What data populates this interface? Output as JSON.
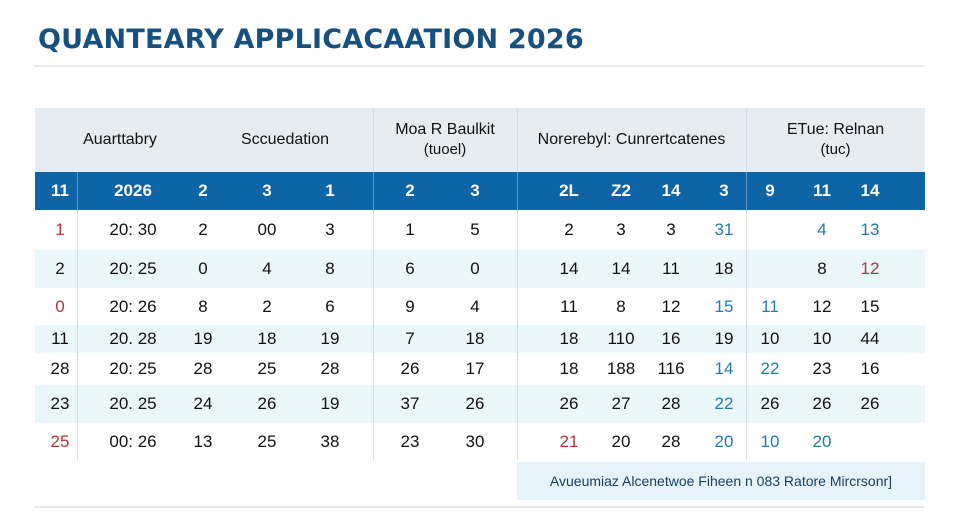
{
  "page": {
    "title": "QUANTEARY APPLICACAATION 2026"
  },
  "table": {
    "group_headers": [
      {
        "label": "Auarttabry",
        "sub": ""
      },
      {
        "label": "Sccuedation",
        "sub": ""
      },
      {
        "label": "Moa R Baulkit",
        "sub": "(tuoel)"
      },
      {
        "label": "Norerebyl: Cunrertcatenes",
        "sub": ""
      },
      {
        "label": "ETue: Relnan",
        "sub": "(tuc)"
      }
    ],
    "band": [
      "11",
      "2026",
      "2",
      "3",
      "1",
      "2",
      "3",
      "2L",
      "Z2",
      "14",
      "3",
      "9",
      "11",
      "14"
    ],
    "rows": [
      {
        "style": "plain",
        "cells": [
          {
            "v": "1",
            "c": "red"
          },
          {
            "v": "20: 30"
          },
          {
            "v": "2"
          },
          {
            "v": "00"
          },
          {
            "v": "3"
          },
          {
            "v": "1"
          },
          {
            "v": "5"
          },
          {
            "v": "2"
          },
          {
            "v": "3"
          },
          {
            "v": "3"
          },
          {
            "v": "31",
            "c": "blue"
          },
          {
            "v": ""
          },
          {
            "v": "4",
            "c": "blue"
          },
          {
            "v": "13",
            "c": "blue"
          }
        ]
      },
      {
        "style": "alt",
        "cells": [
          {
            "v": "2"
          },
          {
            "v": "20: 25"
          },
          {
            "v": "0"
          },
          {
            "v": "4"
          },
          {
            "v": "8"
          },
          {
            "v": "6"
          },
          {
            "v": "0"
          },
          {
            "v": "14"
          },
          {
            "v": "14"
          },
          {
            "v": "11"
          },
          {
            "v": "18"
          },
          {
            "v": ""
          },
          {
            "v": "8"
          },
          {
            "v": "12",
            "c": "red"
          }
        ]
      },
      {
        "style": "plain",
        "cells": [
          {
            "v": "0",
            "c": "red"
          },
          {
            "v": "20: 26"
          },
          {
            "v": "8"
          },
          {
            "v": "2"
          },
          {
            "v": "6"
          },
          {
            "v": "9"
          },
          {
            "v": "4"
          },
          {
            "v": "11"
          },
          {
            "v": "8"
          },
          {
            "v": "12"
          },
          {
            "v": "15",
            "c": "blue"
          },
          {
            "v": "11",
            "c": "blue"
          },
          {
            "v": "12"
          },
          {
            "v": "15"
          }
        ]
      },
      {
        "style": "alt",
        "cells": [
          {
            "v": "11"
          },
          {
            "v": "20. 28"
          },
          {
            "v": "19"
          },
          {
            "v": "18"
          },
          {
            "v": "19"
          },
          {
            "v": "7"
          },
          {
            "v": "18"
          },
          {
            "v": "18"
          },
          {
            "v": "110"
          },
          {
            "v": "16"
          },
          {
            "v": "19"
          },
          {
            "v": "10"
          },
          {
            "v": "10"
          },
          {
            "v": "44"
          }
        ]
      },
      {
        "style": "plain",
        "cells": [
          {
            "v": "28"
          },
          {
            "v": "20: 25"
          },
          {
            "v": "28"
          },
          {
            "v": "25"
          },
          {
            "v": "28"
          },
          {
            "v": "26"
          },
          {
            "v": "17"
          },
          {
            "v": "18"
          },
          {
            "v": "188"
          },
          {
            "v": "116"
          },
          {
            "v": "14",
            "c": "blue"
          },
          {
            "v": "22",
            "c": "blue"
          },
          {
            "v": "23"
          },
          {
            "v": "16"
          }
        ]
      },
      {
        "style": "alt",
        "cells": [
          {
            "v": "23"
          },
          {
            "v": "20. 25"
          },
          {
            "v": "24"
          },
          {
            "v": "26"
          },
          {
            "v": "19"
          },
          {
            "v": "37"
          },
          {
            "v": "26"
          },
          {
            "v": "26"
          },
          {
            "v": "27"
          },
          {
            "v": "28"
          },
          {
            "v": "22",
            "c": "blue"
          },
          {
            "v": "26"
          },
          {
            "v": "26"
          },
          {
            "v": "26"
          }
        ]
      },
      {
        "style": "plain",
        "cells": [
          {
            "v": "25",
            "c": "red"
          },
          {
            "v": "00: 26"
          },
          {
            "v": "13"
          },
          {
            "v": "25"
          },
          {
            "v": "38"
          },
          {
            "v": "23"
          },
          {
            "v": "30"
          },
          {
            "v": "21",
            "c": "red"
          },
          {
            "v": "20"
          },
          {
            "v": "28"
          },
          {
            "v": "20",
            "c": "blue"
          },
          {
            "v": "10",
            "c": "blue"
          },
          {
            "v": "20",
            "c": "blue"
          },
          {
            "v": ""
          }
        ]
      }
    ]
  },
  "footer": {
    "note": "Avueumiaz Alcenetwoe Fiheen n 083 Ratore Mircrsonr]"
  }
}
